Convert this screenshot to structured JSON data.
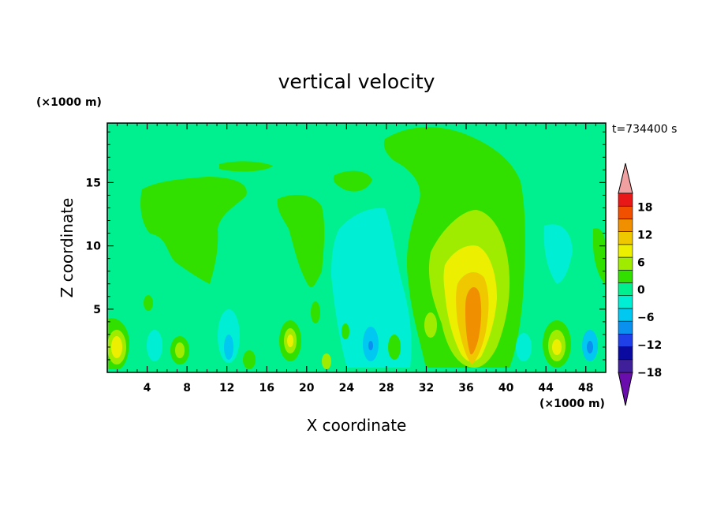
{
  "chart_data": {
    "type": "heatmap",
    "title": "vertical velocity",
    "xlabel": "X coordinate",
    "ylabel": "Z coordinate",
    "x_unit": "(×1000 m)",
    "y_unit": "(×1000 m)",
    "time_label": "t=734400 s",
    "xlim": [
      0,
      50
    ],
    "ylim": [
      0,
      19.7
    ],
    "x_ticks": [
      4,
      8,
      12,
      16,
      20,
      24,
      28,
      32,
      36,
      40,
      44,
      48
    ],
    "y_ticks": [
      5,
      10,
      15
    ],
    "colorbar": {
      "ticks": [
        18,
        12,
        6,
        0,
        -6,
        -12,
        -18
      ],
      "levels": [
        -21,
        -18,
        -15,
        -12,
        -9,
        -6,
        -3,
        0,
        3,
        6,
        9,
        12,
        15,
        18,
        21
      ],
      "colors": [
        "#6a0dad",
        "#3f1f9a",
        "#0a0aa0",
        "#1f3fe8",
        "#0a90ee",
        "#00c8f0",
        "#00eed4",
        "#00f090",
        "#32e000",
        "#a0ec00",
        "#ecf000",
        "#f0c800",
        "#f09000",
        "#f05000",
        "#e81818",
        "#f0a0a0"
      ]
    },
    "features": [
      {
        "name": "updraft core",
        "x": 36.8,
        "z": 5.5,
        "w_max": 12
      },
      {
        "name": "updraft",
        "x": 36.5,
        "z": 9,
        "w": 6
      },
      {
        "name": "anvil region",
        "x": 37,
        "z": 15,
        "w": 1
      },
      {
        "name": "downdraft",
        "x": 26,
        "z": 8,
        "w": -3
      },
      {
        "name": "left upper updraft",
        "x": 7,
        "z": 12,
        "w": 1
      },
      {
        "name": "mid upper updraft",
        "x": 20,
        "z": 10,
        "w": 1
      },
      {
        "name": "low-level cell",
        "x": 1,
        "z": 2,
        "w": 6
      },
      {
        "name": "low-level cell",
        "x": 18.5,
        "z": 2.4,
        "w": 5
      },
      {
        "name": "low-level cell",
        "x": 45,
        "z": 2,
        "w": 6
      },
      {
        "name": "low-level downdraft",
        "x": 48.5,
        "z": 2,
        "w": -9
      }
    ]
  }
}
